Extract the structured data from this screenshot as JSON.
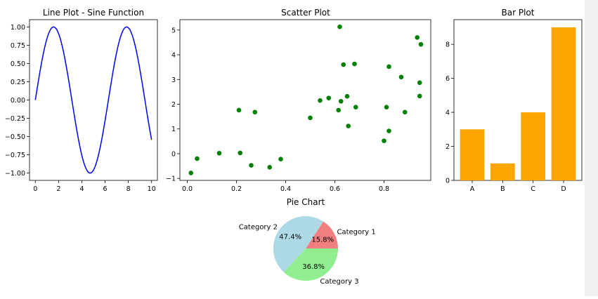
{
  "chart_data": [
    {
      "type": "line",
      "title": "Line Plot - Sine Function",
      "xlabel": "",
      "ylabel": "",
      "function": "sin(x)",
      "x_range": [
        0,
        10
      ],
      "xlim": [
        -0.5,
        10.5
      ],
      "ylim": [
        -1.1,
        1.1
      ],
      "x_ticks": [
        0,
        2,
        4,
        6,
        8,
        10
      ],
      "x_tick_labels": [
        "0",
        "2",
        "4",
        "6",
        "8",
        "10"
      ],
      "y_ticks": [
        1.0,
        0.75,
        0.5,
        0.25,
        0.0,
        -0.25,
        -0.5,
        -0.75,
        -1.0
      ],
      "y_tick_labels": [
        "1.00",
        "0.75",
        "0.50",
        "0.25",
        "0.00",
        "−0.25",
        "−0.50",
        "−0.75",
        "−1.00"
      ],
      "color": "#0000ff",
      "grid": false
    },
    {
      "type": "scatter",
      "title": "Scatter Plot",
      "xlabel": "",
      "ylabel": "",
      "points": [
        [
          0.015,
          -0.78
        ],
        [
          0.04,
          -0.2
        ],
        [
          0.13,
          0.02
        ],
        [
          0.21,
          1.76
        ],
        [
          0.215,
          0.03
        ],
        [
          0.26,
          -0.47
        ],
        [
          0.275,
          1.68
        ],
        [
          0.335,
          -0.55
        ],
        [
          0.38,
          -0.22
        ],
        [
          0.5,
          1.45
        ],
        [
          0.54,
          2.15
        ],
        [
          0.575,
          2.25
        ],
        [
          0.615,
          1.76
        ],
        [
          0.62,
          5.13
        ],
        [
          0.625,
          2.12
        ],
        [
          0.635,
          3.6
        ],
        [
          0.65,
          2.32
        ],
        [
          0.655,
          1.12
        ],
        [
          0.68,
          3.63
        ],
        [
          0.685,
          1.88
        ],
        [
          0.8,
          0.52
        ],
        [
          0.81,
          1.88
        ],
        [
          0.82,
          0.92
        ],
        [
          0.82,
          3.52
        ],
        [
          0.87,
          3.1
        ],
        [
          0.885,
          1.68
        ],
        [
          0.935,
          4.7
        ],
        [
          0.945,
          2.87
        ],
        [
          0.945,
          2.33
        ],
        [
          0.95,
          4.42
        ]
      ],
      "xlim": [
        -0.03,
        0.99
      ],
      "ylim": [
        -1.08,
        5.42
      ],
      "x_ticks": [
        0.0,
        0.2,
        0.4,
        0.6,
        0.8
      ],
      "x_tick_labels": [
        "0.0",
        "0.2",
        "0.4",
        "0.6",
        "0.8"
      ],
      "y_ticks": [
        5,
        4,
        3,
        2,
        1,
        0,
        -1
      ],
      "y_tick_labels": [
        "5",
        "4",
        "3",
        "2",
        "1",
        "0",
        "−1"
      ],
      "color": "#008000",
      "grid": false
    },
    {
      "type": "bar",
      "title": "Bar Plot",
      "xlabel": "",
      "ylabel": "",
      "categories": [
        "A",
        "B",
        "C",
        "D"
      ],
      "values": [
        3,
        1,
        4,
        9
      ],
      "ylim": [
        0,
        9.45
      ],
      "y_ticks": [
        0,
        2,
        4,
        6,
        8
      ],
      "y_tick_labels": [
        "0",
        "2",
        "4",
        "6",
        "8"
      ],
      "color": "#ffa500",
      "grid": false
    },
    {
      "type": "pie",
      "title": "Pie Chart",
      "labels": [
        "Category 1",
        "Category 2",
        "Category 3"
      ],
      "values": [
        15.8,
        47.4,
        36.8
      ],
      "pct_labels": [
        "15.8%",
        "47.4%",
        "36.8%"
      ],
      "colors": [
        "#f08080",
        "#add8e6",
        "#90ee90"
      ],
      "start_angle_deg": 0,
      "direction": "counterclockwise"
    }
  ]
}
